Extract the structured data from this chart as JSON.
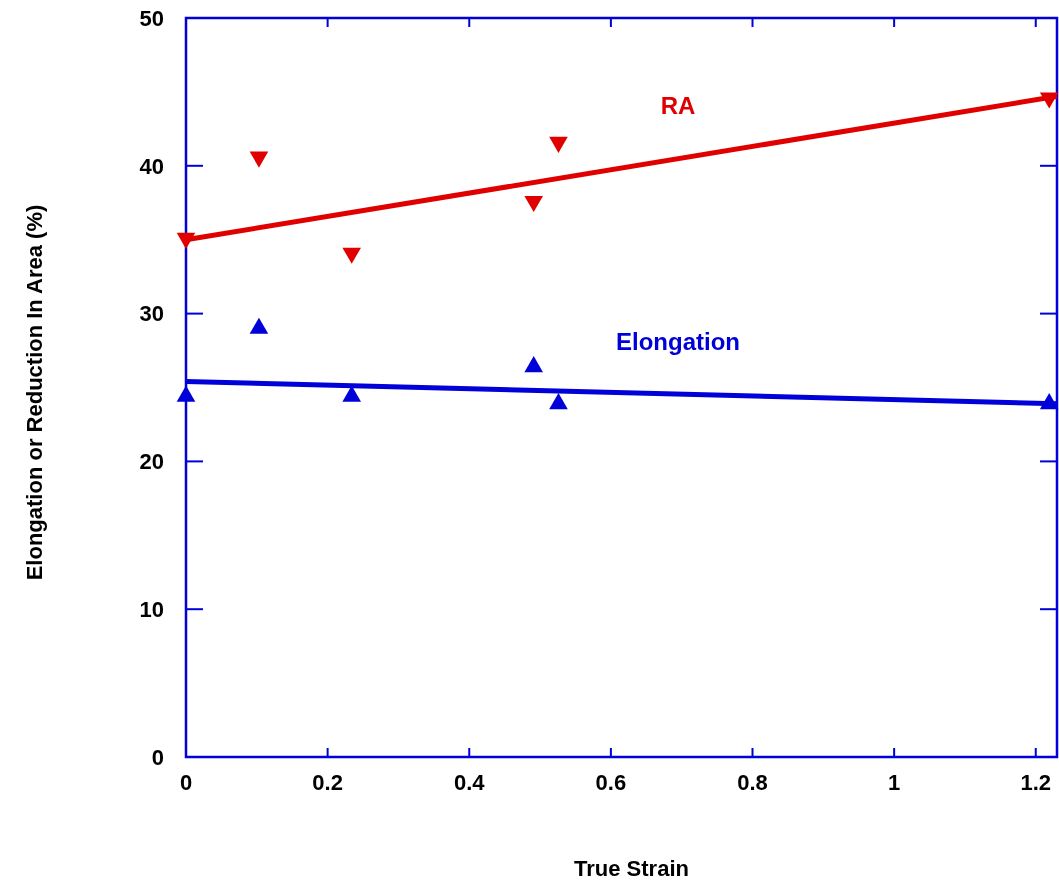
{
  "chart_data": {
    "type": "scatter",
    "xlabel": "True Strain",
    "ylabel": "Elongation or Reduction In Area (%)",
    "xlim": [
      0,
      1.23
    ],
    "xticks": [
      0,
      0.2,
      0.4,
      0.6,
      0.8,
      1,
      1.2
    ],
    "ylim": [
      0,
      50
    ],
    "yticks": [
      0,
      10,
      20,
      30,
      40,
      50
    ],
    "grid": false,
    "marker": "triangle",
    "series": [
      {
        "name": "RA",
        "color": "#e00000",
        "marker": "triangle-down",
        "x": [
          0,
          0.103,
          0.234,
          0.491,
          0.526,
          1.219
        ],
        "values": [
          35.1,
          40.6,
          34.1,
          37.6,
          41.6,
          44.6
        ]
      },
      {
        "name": "Elongation",
        "color": "#0000d8",
        "x": [
          0,
          0.103,
          0.234,
          0.491,
          0.526,
          1.219
        ],
        "values": [
          24.4,
          29.0,
          24.4,
          26.4,
          23.9,
          23.9
        ]
      },
      {
        "type": "line",
        "marker": "none",
        "color": "#e00000",
        "x": [
          0,
          1.23
        ],
        "values": [
          35.0,
          44.7
        ]
      },
      {
        "type": "line",
        "marker": "none",
        "color": "#0000d8",
        "x": [
          0,
          1.23
        ],
        "values": [
          25.4,
          23.9
        ]
      }
    ]
  }
}
